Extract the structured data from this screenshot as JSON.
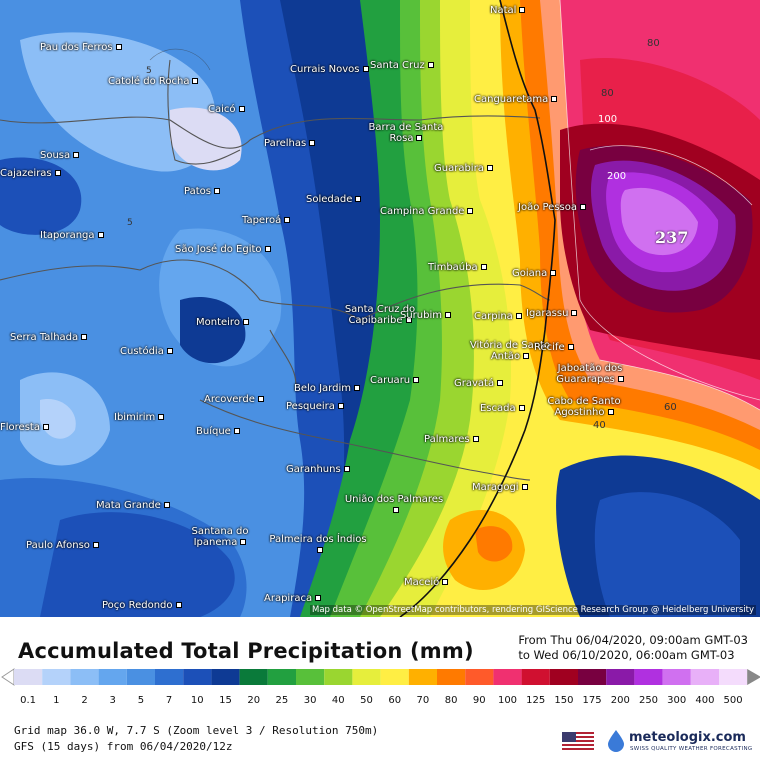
{
  "map": {
    "peak_value": "237",
    "attribution": "Map data © OpenStreetMap contributors, rendering GIScience Research Group @ Heidelberg University",
    "contour_labels": [
      "80",
      "80",
      "100",
      "200",
      "60",
      "40",
      "5",
      "5"
    ],
    "cities": [
      "Natal",
      "Pau dos Ferros",
      "Catolé do Rocha",
      "Currais Novos",
      "Santa Cruz",
      "Caicó",
      "Canguaretama",
      "Barra de Santa Rosa",
      "Sousa",
      "Parelhas",
      "Guarabira",
      "Cajazeiras",
      "Patos",
      "Soledade",
      "João Pessoa",
      "Campina Grande",
      "Taperoá",
      "Itaporanga",
      "São José do Egito",
      "Timbaúba",
      "Goiana",
      "Santa Cruz do Capibaribe",
      "Surubim",
      "Carpina",
      "Igarassu",
      "Monteiro",
      "Serra Talhada",
      "Custódia",
      "Vitória de Santo Antão",
      "Recife",
      "Caruaru",
      "Jaboatão dos Guararapes",
      "Gravatá",
      "Belo Jardim",
      "Arcoverde",
      "Pesqueira",
      "Cabo de Santo Agostinho",
      "Escada",
      "Ibimirim",
      "Floresta",
      "Buíque",
      "Palmares",
      "Garanhuns",
      "Maragogi",
      "União dos Palmares",
      "Mata Grande",
      "Santana do Ipanema",
      "Paulo Afonso",
      "Palmeira dos Índios",
      "Maceió",
      "Arapiraca",
      "Poço Redondo"
    ]
  },
  "legend": {
    "title": "Accumulated Total Precipitation (mm)",
    "range_from": "From Thu 06/04/2020, 09:00am GMT-03",
    "range_to": "to Wed 06/10/2020, 06:00am GMT-03",
    "ticks": [
      "0.1",
      "1",
      "2",
      "3",
      "5",
      "7",
      "10",
      "15",
      "20",
      "25",
      "30",
      "40",
      "50",
      "60",
      "70",
      "80",
      "90",
      "100",
      "125",
      "150",
      "175",
      "200",
      "250",
      "300",
      "400",
      "500"
    ],
    "colors": [
      "#dcdcf4",
      "#b4d2fa",
      "#8cbef6",
      "#64a6ee",
      "#4a90e2",
      "#2e6fd0",
      "#1c50b8",
      "#0e3a94",
      "#0a7a3a",
      "#22a040",
      "#58c03a",
      "#9ad630",
      "#e6ee3c",
      "#ffee44",
      "#ffb000",
      "#ff7a00",
      "#ff5a2a",
      "#f03070",
      "#d01030",
      "#a00020",
      "#780040",
      "#8a1aa8",
      "#b030e0",
      "#d070f0",
      "#e8b0f8",
      "#f4dcfc"
    ]
  },
  "footer": {
    "grid_info": "Grid map 36.0 W, 7.7 S (Zoom level 3 / Resolution 750m)",
    "model_info": "GFS (15 days) from 06/04/2020/12z"
  },
  "branding": {
    "logo": "meteologix.com",
    "tagline": "SWISS QUALITY WEATHER FORECASTING",
    "flag": "us-flag-icon"
  }
}
